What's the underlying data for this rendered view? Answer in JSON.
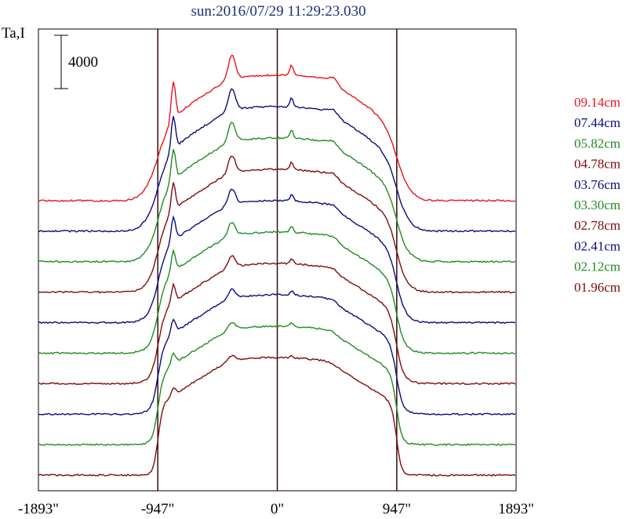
{
  "chart_data": {
    "type": "line",
    "title": "sun:2016/07/29 11:29:23.030",
    "ylabel": "Ta,I",
    "scale_bar_label": "4000",
    "x_ticks": [
      {
        "value": -1893,
        "label": "-1893\""
      },
      {
        "value": -947,
        "label": "-947\""
      },
      {
        "value": 0,
        "label": "0\""
      },
      {
        "value": 947,
        "label": "947\""
      },
      {
        "value": 1893,
        "label": "1893\""
      }
    ],
    "xlim": [
      -1893,
      1893
    ],
    "vertical_markers": [
      -947,
      0,
      947
    ],
    "series": [
      {
        "name": "09.14cm",
        "color": "#e8141c",
        "color_name": "red"
      },
      {
        "name": "07.44cm",
        "color": "#0a0a80",
        "color_name": "navy"
      },
      {
        "name": "05.82cm",
        "color": "#1e8c1e",
        "color_name": "green"
      },
      {
        "name": "04.78cm",
        "color": "#800a0a",
        "color_name": "maroon"
      },
      {
        "name": "03.76cm",
        "color": "#0a0a80",
        "color_name": "navy"
      },
      {
        "name": "03.30cm",
        "color": "#1e8c1e",
        "color_name": "green"
      },
      {
        "name": "02.78cm",
        "color": "#800a0a",
        "color_name": "maroon"
      },
      {
        "name": "02.41cm",
        "color": "#0a0a80",
        "color_name": "navy"
      },
      {
        "name": "02.12cm",
        "color": "#1e8c1e",
        "color_name": "green"
      },
      {
        "name": "01.96cm",
        "color": "#800a0a",
        "color_name": "maroon"
      }
    ]
  }
}
